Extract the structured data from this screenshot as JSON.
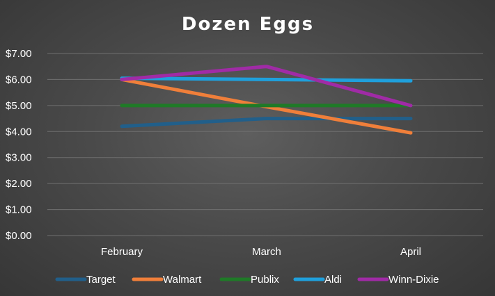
{
  "chart_data": {
    "type": "line",
    "title": "Dozen Eggs",
    "xlabel": "",
    "ylabel": "",
    "categories": [
      "February",
      "March",
      "April"
    ],
    "ylim": [
      0,
      7
    ],
    "yticks": [
      0,
      1,
      2,
      3,
      4,
      5,
      6,
      7
    ],
    "ytick_labels": [
      "$0.00",
      "$1.00",
      "$2.00",
      "$3.00",
      "$4.00",
      "$5.00",
      "$6.00",
      "$7.00"
    ],
    "grid": true,
    "legend_position": "bottom",
    "series": [
      {
        "name": "Target",
        "values": [
          4.2,
          4.5,
          4.5
        ],
        "color": "#215f8a"
      },
      {
        "name": "Walmart",
        "values": [
          6.0,
          4.95,
          3.95
        ],
        "color": "#f07f3a"
      },
      {
        "name": "Publix",
        "values": [
          5.0,
          5.0,
          5.0
        ],
        "color": "#1f7a27"
      },
      {
        "name": "Aldi",
        "values": [
          6.05,
          6.0,
          5.95
        ],
        "color": "#1fa0dc"
      },
      {
        "name": "Winn-Dixie",
        "values": [
          6.0,
          6.5,
          5.0
        ],
        "color": "#a02ba6"
      }
    ]
  }
}
